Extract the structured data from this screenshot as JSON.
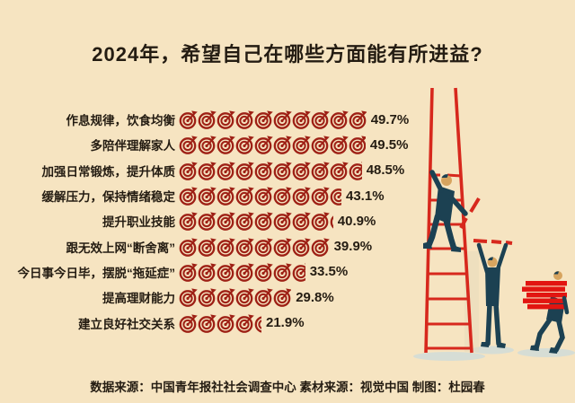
{
  "title": "2024年，希望自己在哪些方面能有所进益?",
  "chart_data": {
    "type": "bar",
    "orientation": "horizontal",
    "title": "2024年，希望自己在哪些方面能有所进益?",
    "categories": [
      "作息规律，饮食均衡",
      "多陪伴理解家人",
      "加强日常锻炼，提升体质",
      "缓解压力，保持情绪稳定",
      "提升职业技能",
      "跟无效上网“断舍离”",
      "今日事今日毕，摆脱“拖延症”",
      "提高理财能力",
      "建立良好社交关系"
    ],
    "values": [
      49.7,
      49.5,
      48.5,
      43.1,
      40.9,
      39.9,
      33.5,
      29.8,
      21.9
    ],
    "value_labels": [
      "49.7%",
      "49.5%",
      "48.5%",
      "43.1%",
      "40.9%",
      "39.9%",
      "33.5%",
      "29.8%",
      "21.9%"
    ],
    "unit_percent_per_icon": 5,
    "icon": "dart-target",
    "xlim": [
      0,
      50
    ],
    "grid": "off",
    "legend": "none"
  },
  "footer": {
    "credits": "数据来源：中国青年报社社会调查中心 素材来源：视觉中国 制图：杜园春"
  },
  "colors": {
    "background": "#f6e4c1",
    "text": "#241c12",
    "icon_red": "#9e2015",
    "ladder_red": "#d7281d",
    "stack_red": "#e21511",
    "figure_body": "#1c4152",
    "skin": "#d7a45f",
    "shadow": "#d6ddd5"
  }
}
